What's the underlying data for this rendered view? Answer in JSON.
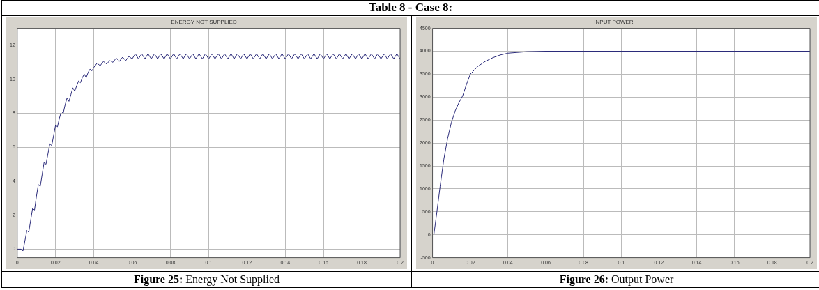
{
  "chart_data": [
    {
      "type": "line",
      "title": "ENERGY NOT SUPPLIED",
      "annotations": [
        "Figure 25: Energy Not Supplied",
        "Table 8 - Case 8:"
      ],
      "xlim": [
        0,
        0.2
      ],
      "xticks": [
        0,
        0.02,
        0.04,
        0.06,
        0.08,
        0.1,
        0.12,
        0.14,
        0.16,
        0.18,
        0.2
      ],
      "ylim": [
        -0.5,
        13
      ],
      "yticks": [
        0,
        2,
        4,
        6,
        8,
        10,
        12
      ],
      "grid": true,
      "series": [
        {
          "color": "#2b2b7a",
          "x": [
            0,
            0.002,
            0.003,
            0.004,
            0.005,
            0.006,
            0.007,
            0.008,
            0.009,
            0.01,
            0.011,
            0.012,
            0.013,
            0.014,
            0.015,
            0.016,
            0.017,
            0.018,
            0.019,
            0.02,
            0.021,
            0.022,
            0.023,
            0.024,
            0.025,
            0.026,
            0.027,
            0.028,
            0.029,
            0.03,
            0.031,
            0.032,
            0.033,
            0.034,
            0.035,
            0.036,
            0.037,
            0.038,
            0.039,
            0.04,
            0.0417,
            0.0433,
            0.045,
            0.0467,
            0.0483,
            0.05,
            0.0517,
            0.0533,
            0.055,
            0.0567,
            0.0583,
            0.06,
            0.0617,
            0.0633,
            0.065,
            0.0667,
            0.0683,
            0.07,
            0.0717,
            0.0733,
            0.075,
            0.0767,
            0.0783,
            0.08,
            0.0817,
            0.0833,
            0.085,
            0.0867,
            0.0883,
            0.09,
            0.0917,
            0.0933,
            0.095,
            0.0967,
            0.0983,
            0.1,
            0.1017,
            0.1033,
            0.105,
            0.1067,
            0.1083,
            0.11,
            0.1117,
            0.1133,
            0.115,
            0.1167,
            0.1183,
            0.12,
            0.1217,
            0.1233,
            0.125,
            0.1267,
            0.1283,
            0.13,
            0.1317,
            0.1333,
            0.135,
            0.1367,
            0.1383,
            0.14,
            0.1417,
            0.1433,
            0.145,
            0.1467,
            0.1483,
            0.15,
            0.1517,
            0.1533,
            0.155,
            0.1567,
            0.1583,
            0.16,
            0.1617,
            0.1633,
            0.165,
            0.1667,
            0.1683,
            0.17,
            0.1717,
            0.1733,
            0.175,
            0.1767,
            0.1783,
            0.18,
            0.1817,
            0.1833,
            0.185,
            0.1867,
            0.1883,
            0.19,
            0.1917,
            0.1933,
            0.195,
            0.1967,
            0.1983,
            0.2
          ],
          "values": [
            0,
            0,
            -0.1,
            0.5,
            1.1,
            1.0,
            1.7,
            2.4,
            2.3,
            3.1,
            3.8,
            3.7,
            4.4,
            5.1,
            5.0,
            5.6,
            6.2,
            6.1,
            6.7,
            7.3,
            7.2,
            7.7,
            8.1,
            8.0,
            8.5,
            8.9,
            8.7,
            9.1,
            9.5,
            9.3,
            9.6,
            9.9,
            9.8,
            10.1,
            10.3,
            10.1,
            10.4,
            10.6,
            10.5,
            10.7,
            10.95,
            10.8,
            11.05,
            10.9,
            11.1,
            11.0,
            11.25,
            11.05,
            11.3,
            11.1,
            11.35,
            11.2,
            11.5,
            11.2,
            11.5,
            11.2,
            11.5,
            11.2,
            11.5,
            11.2,
            11.5,
            11.2,
            11.5,
            11.2,
            11.5,
            11.2,
            11.5,
            11.2,
            11.5,
            11.2,
            11.5,
            11.2,
            11.5,
            11.2,
            11.5,
            11.2,
            11.5,
            11.2,
            11.5,
            11.2,
            11.5,
            11.2,
            11.5,
            11.2,
            11.5,
            11.2,
            11.5,
            11.2,
            11.5,
            11.2,
            11.5,
            11.2,
            11.5,
            11.2,
            11.5,
            11.2,
            11.5,
            11.2,
            11.5,
            11.2,
            11.5,
            11.2,
            11.5,
            11.2,
            11.5,
            11.2,
            11.5,
            11.2,
            11.5,
            11.2,
            11.5,
            11.2,
            11.5,
            11.2,
            11.5,
            11.2,
            11.5,
            11.2,
            11.5,
            11.2,
            11.5,
            11.2,
            11.5,
            11.2,
            11.5,
            11.2,
            11.5,
            11.2,
            11.5,
            11.2,
            11.5,
            11.2,
            11.5,
            11.2,
            11.5,
            11.2
          ]
        }
      ]
    },
    {
      "type": "line",
      "title": "INPUT POWER",
      "annotations": [
        "Figure 26: Output Power"
      ],
      "xlim": [
        0,
        0.2
      ],
      "xticks": [
        0,
        0.02,
        0.04,
        0.06,
        0.08,
        0.1,
        0.12,
        0.14,
        0.16,
        0.18,
        0.2
      ],
      "ylim": [
        -500,
        4500
      ],
      "yticks": [
        -500,
        0,
        500,
        1000,
        1500,
        2000,
        2500,
        3000,
        3500,
        4000,
        4500
      ],
      "grid": true,
      "series": [
        {
          "color": "#2b2b7a",
          "x": [
            0.0007,
            0.002,
            0.004,
            0.006,
            0.008,
            0.01,
            0.012,
            0.014,
            0.016,
            0.018,
            0.02,
            0.024,
            0.028,
            0.032,
            0.036,
            0.04,
            0.05,
            0.06,
            0.2
          ],
          "values": [
            0,
            400,
            1050,
            1650,
            2100,
            2450,
            2700,
            2880,
            3030,
            3280,
            3500,
            3670,
            3780,
            3860,
            3920,
            3958,
            3990,
            4000,
            4000
          ]
        }
      ]
    }
  ]
}
